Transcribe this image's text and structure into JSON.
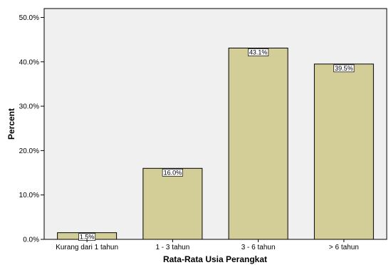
{
  "chart_data": {
    "type": "bar",
    "title": "",
    "xlabel": "Rata-Rata Usia Perangkat",
    "ylabel": "Percent",
    "categories": [
      "Kurang dari 1 tahun",
      "1 - 3 tahun",
      "3 - 6 tahun",
      "> 6 tahun"
    ],
    "values": [
      1.5,
      16.0,
      43.1,
      39.5
    ],
    "data_labels": [
      "1.5%",
      "16.0%",
      "43.1%",
      "39.5%"
    ],
    "ylim": [
      0,
      52
    ],
    "yticks": [
      0,
      10,
      20,
      30,
      40,
      50
    ],
    "ytick_labels": [
      "0.0%",
      "10.0%",
      "20.0%",
      "30.0%",
      "40.0%",
      "50.0%"
    ],
    "grid": false,
    "legend": "none",
    "colors": {
      "bar_fill": "#d3ce97",
      "bar_stroke": "#000000",
      "plot_background": "#f0f0f0",
      "axis": "#000000"
    }
  }
}
